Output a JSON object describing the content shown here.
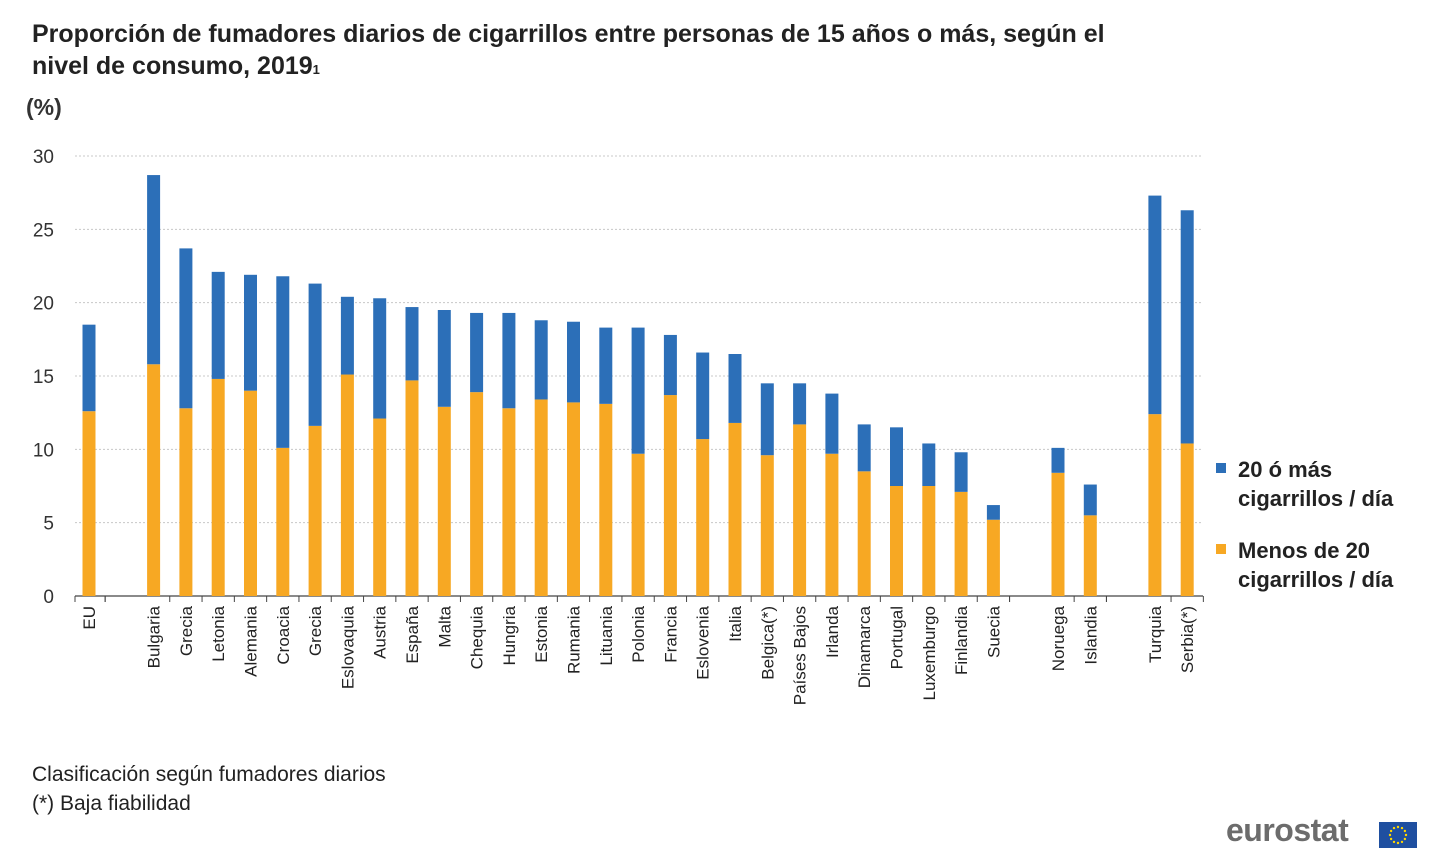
{
  "title": "Proporción de fumadores diarios de cigarrillos entre personas de 15 años o más, según el nivel de consumo, 2019",
  "title_note": "1",
  "unit_label": "(%)",
  "notes": [
    "Clasificación según fumadores diarios",
    "(*) Baja fiabilidad"
  ],
  "brand": "eurostat",
  "colors": {
    "heavy": "#2c6fb8",
    "light": "#f7a823",
    "grid": "#c8c8c8",
    "axis": "#444444"
  },
  "legend": [
    {
      "label": "20 ó más cigarrillos / día",
      "color": "#2c6fb8"
    },
    {
      "label": "Menos de 20 cigarrillos / día",
      "color": "#f7a823"
    }
  ],
  "chart_data": {
    "type": "bar",
    "stacked": true,
    "title": "Proporción de fumadores diarios de cigarrillos entre personas de 15 años o más, según el nivel de consumo, 2019",
    "ylabel": "(%)",
    "ylim": [
      0,
      30
    ],
    "yticks": [
      0,
      5,
      10,
      15,
      20,
      25,
      30
    ],
    "grid": true,
    "legend_position": "right",
    "groups": [
      [
        "EU"
      ],
      [
        "Bulgaria",
        "Grecia",
        "Letonia",
        "Alemania",
        "Croacia",
        "Grecia",
        "Eslovaquia",
        "Austria",
        "España",
        "Malta",
        "Chequia",
        "Hungria",
        "Estonia",
        "Rumania",
        "Lituania",
        "Polonia",
        "Francia",
        "Eslovenia",
        "Italia",
        "Belgica(*)",
        "Países Bajos",
        "Irlanda",
        "Dinamarca",
        "Portugal",
        "Luxemburgo",
        "Finlandia",
        "Suecia"
      ],
      [
        "Noruega",
        "Islandia"
      ],
      [
        "Turquia",
        "Serbia(*)"
      ]
    ],
    "categories": [
      "EU",
      "Bulgaria",
      "Grecia",
      "Letonia",
      "Alemania",
      "Croacia",
      "Grecia",
      "Eslovaquia",
      "Austria",
      "España",
      "Malta",
      "Chequia",
      "Hungria",
      "Estonia",
      "Rumania",
      "Lituania",
      "Polonia",
      "Francia",
      "Eslovenia",
      "Italia",
      "Belgica(*)",
      "Países Bajos",
      "Irlanda",
      "Dinamarca",
      "Portugal",
      "Luxemburgo",
      "Finlandia",
      "Suecia",
      "Noruega",
      "Islandia",
      "Turquia",
      "Serbia(*)"
    ],
    "series": [
      {
        "name": "Menos de 20 cigarrillos / día",
        "color": "#f7a823",
        "values": [
          12.6,
          15.8,
          12.8,
          14.8,
          14.0,
          10.1,
          11.6,
          15.1,
          12.1,
          14.7,
          12.9,
          13.9,
          12.8,
          13.4,
          13.2,
          13.1,
          9.7,
          13.7,
          10.7,
          11.8,
          9.6,
          11.7,
          9.7,
          8.5,
          7.5,
          7.5,
          7.1,
          5.2,
          8.4,
          5.5,
          12.4,
          10.4
        ]
      },
      {
        "name": "20 ó más cigarrillos / día",
        "color": "#2c6fb8",
        "values": [
          5.9,
          12.9,
          10.9,
          7.3,
          7.9,
          11.7,
          9.7,
          5.3,
          8.2,
          5.0,
          6.6,
          5.4,
          6.5,
          5.4,
          5.5,
          5.2,
          8.6,
          4.1,
          5.9,
          4.7,
          4.9,
          2.8,
          4.1,
          3.2,
          4.0,
          2.9,
          2.7,
          1.0,
          1.7,
          2.1,
          14.9,
          15.9
        ]
      }
    ]
  }
}
